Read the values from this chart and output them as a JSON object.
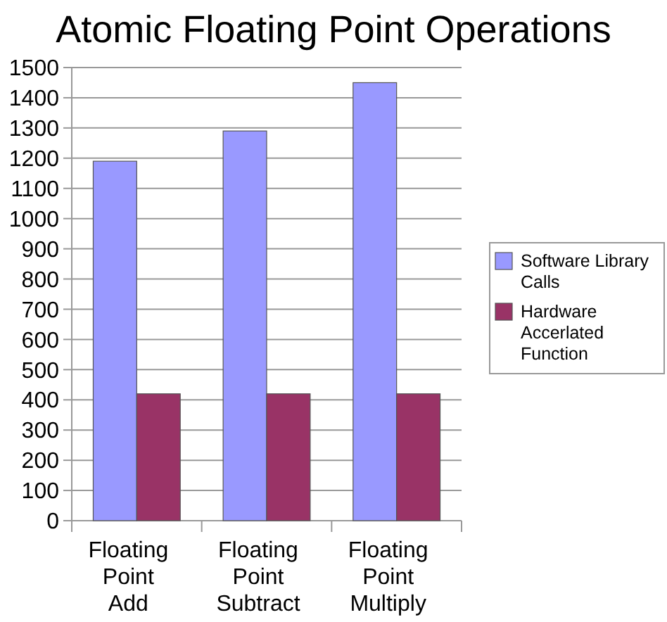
{
  "chart_data": {
    "type": "bar",
    "title": "Atomic Floating Point Operations",
    "categories": [
      "Floating Point Add",
      "Floating Point Subtract",
      "Floating Point Multiply"
    ],
    "series": [
      {
        "name": "Software Library Calls",
        "color": "#9999ff",
        "values": [
          1190,
          1290,
          1450
        ]
      },
      {
        "name": "Hardware Accerlated Function",
        "color": "#993366",
        "values": [
          420,
          420,
          420
        ]
      }
    ],
    "ylim": [
      0,
      1500
    ],
    "yticks": [
      0,
      100,
      200,
      300,
      400,
      500,
      600,
      700,
      800,
      900,
      1000,
      1100,
      1200,
      1300,
      1400,
      1500
    ],
    "grid": "y",
    "legend": "right"
  }
}
